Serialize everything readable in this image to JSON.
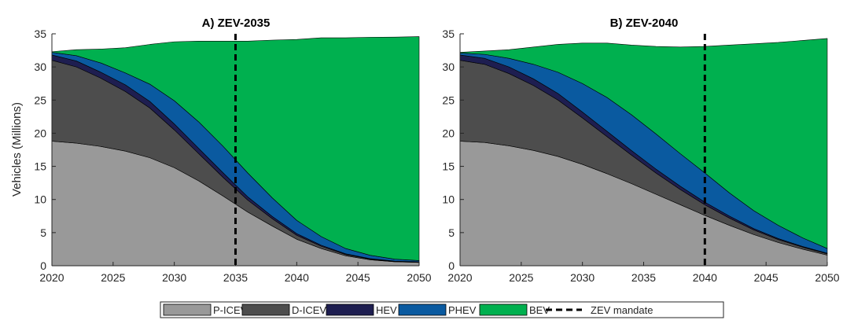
{
  "chart_data": [
    {
      "type": "area",
      "title": "A) ZEV-2035",
      "ylabel": "Vehicles (Millions)",
      "xlabel": "",
      "xlim": [
        2020,
        2050
      ],
      "ylim": [
        0,
        35
      ],
      "x_ticks": [
        2020,
        2025,
        2030,
        2035,
        2040,
        2045,
        2050
      ],
      "y_ticks": [
        0,
        5,
        10,
        15,
        20,
        25,
        30,
        35
      ],
      "stacked": true,
      "x": [
        2020,
        2022,
        2024,
        2026,
        2028,
        2030,
        2032,
        2034,
        2036,
        2038,
        2040,
        2042,
        2044,
        2046,
        2048,
        2050
      ],
      "series": [
        {
          "name": "P-ICEV",
          "color": "#999999",
          "values": [
            18.8,
            18.5,
            18.0,
            17.3,
            16.3,
            14.8,
            12.8,
            10.5,
            8.1,
            6.0,
            4.0,
            2.6,
            1.5,
            0.9,
            0.6,
            0.5
          ]
        },
        {
          "name": "D-ICEV",
          "color": "#4d4d4d",
          "values": [
            12.2,
            11.5,
            10.3,
            9.0,
            7.5,
            5.7,
            4.1,
            2.8,
            1.8,
            1.1,
            0.6,
            0.35,
            0.2,
            0.1,
            0.05,
            0.03
          ]
        },
        {
          "name": "HEV",
          "color": "#1e1e50",
          "values": [
            0.8,
            0.9,
            0.9,
            1.0,
            1.0,
            0.9,
            0.8,
            0.7,
            0.5,
            0.35,
            0.25,
            0.15,
            0.1,
            0.08,
            0.05,
            0.05
          ]
        },
        {
          "name": "PHEV",
          "color": "#0a5aa0",
          "values": [
            0.4,
            0.8,
            1.4,
            1.8,
            2.6,
            3.5,
            4.0,
            4.0,
            3.6,
            2.8,
            2.0,
            1.3,
            0.8,
            0.5,
            0.3,
            0.2
          ]
        },
        {
          "name": "BEV",
          "color": "#00b04f",
          "values": [
            0.1,
            0.9,
            2.1,
            3.8,
            6.0,
            8.9,
            12.2,
            15.9,
            19.9,
            23.8,
            27.3,
            30.0,
            31.8,
            32.9,
            33.5,
            33.8
          ]
        }
      ],
      "annotations": [
        {
          "type": "vline",
          "x": 2035,
          "style": "dashed",
          "color": "#000000",
          "label": "ZEV mandate"
        }
      ],
      "grid": false
    },
    {
      "type": "area",
      "title": "B) ZEV-2040",
      "ylabel": "",
      "xlabel": "",
      "xlim": [
        2020,
        2050
      ],
      "ylim": [
        0,
        35
      ],
      "x_ticks": [
        2020,
        2025,
        2030,
        2035,
        2040,
        2045,
        2050
      ],
      "y_ticks": [
        0,
        5,
        10,
        15,
        20,
        25,
        30,
        35
      ],
      "stacked": true,
      "x": [
        2020,
        2022,
        2024,
        2026,
        2028,
        2030,
        2032,
        2034,
        2036,
        2038,
        2040,
        2042,
        2044,
        2046,
        2048,
        2050
      ],
      "series": [
        {
          "name": "P-ICEV",
          "color": "#999999",
          "values": [
            18.8,
            18.6,
            18.1,
            17.4,
            16.5,
            15.3,
            13.9,
            12.4,
            10.8,
            9.2,
            7.6,
            6.1,
            4.7,
            3.5,
            2.5,
            1.6
          ]
        },
        {
          "name": "D-ICEV",
          "color": "#4d4d4d",
          "values": [
            12.2,
            11.8,
            10.9,
            9.8,
            8.5,
            7.0,
            5.6,
            4.3,
            3.2,
            2.3,
            1.6,
            1.1,
            0.7,
            0.45,
            0.3,
            0.2
          ]
        },
        {
          "name": "HEV",
          "color": "#1e1e50",
          "values": [
            0.8,
            0.9,
            1.0,
            1.0,
            1.0,
            0.9,
            0.8,
            0.7,
            0.6,
            0.5,
            0.4,
            0.3,
            0.2,
            0.15,
            0.1,
            0.1
          ]
        },
        {
          "name": "PHEV",
          "color": "#0a5aa0",
          "values": [
            0.3,
            0.6,
            1.3,
            2.2,
            3.2,
            4.3,
            5.1,
            5.4,
            5.3,
            4.9,
            4.4,
            3.5,
            2.7,
            2.0,
            1.3,
            0.7
          ]
        },
        {
          "name": "BEV",
          "color": "#00b04f",
          "values": [
            0.1,
            0.5,
            1.3,
            2.6,
            4.2,
            6.1,
            8.2,
            10.5,
            13.2,
            16.1,
            19.1,
            22.3,
            25.2,
            27.6,
            29.8,
            31.7
          ]
        }
      ],
      "annotations": [
        {
          "type": "vline",
          "x": 2040,
          "style": "dashed",
          "color": "#000000",
          "label": "ZEV mandate"
        }
      ],
      "grid": false
    }
  ],
  "legend": {
    "placement": "bottom",
    "items": [
      {
        "label": "P-ICEV",
        "kind": "patch",
        "color": "#999999"
      },
      {
        "label": "D-ICEV",
        "kind": "patch",
        "color": "#4d4d4d"
      },
      {
        "label": "HEV",
        "kind": "patch",
        "color": "#1e1e50"
      },
      {
        "label": "PHEV",
        "kind": "patch",
        "color": "#0a5aa0"
      },
      {
        "label": "BEV",
        "kind": "patch",
        "color": "#00b04f"
      },
      {
        "label": "ZEV mandate",
        "kind": "dashed-line",
        "color": "#000000"
      }
    ]
  }
}
